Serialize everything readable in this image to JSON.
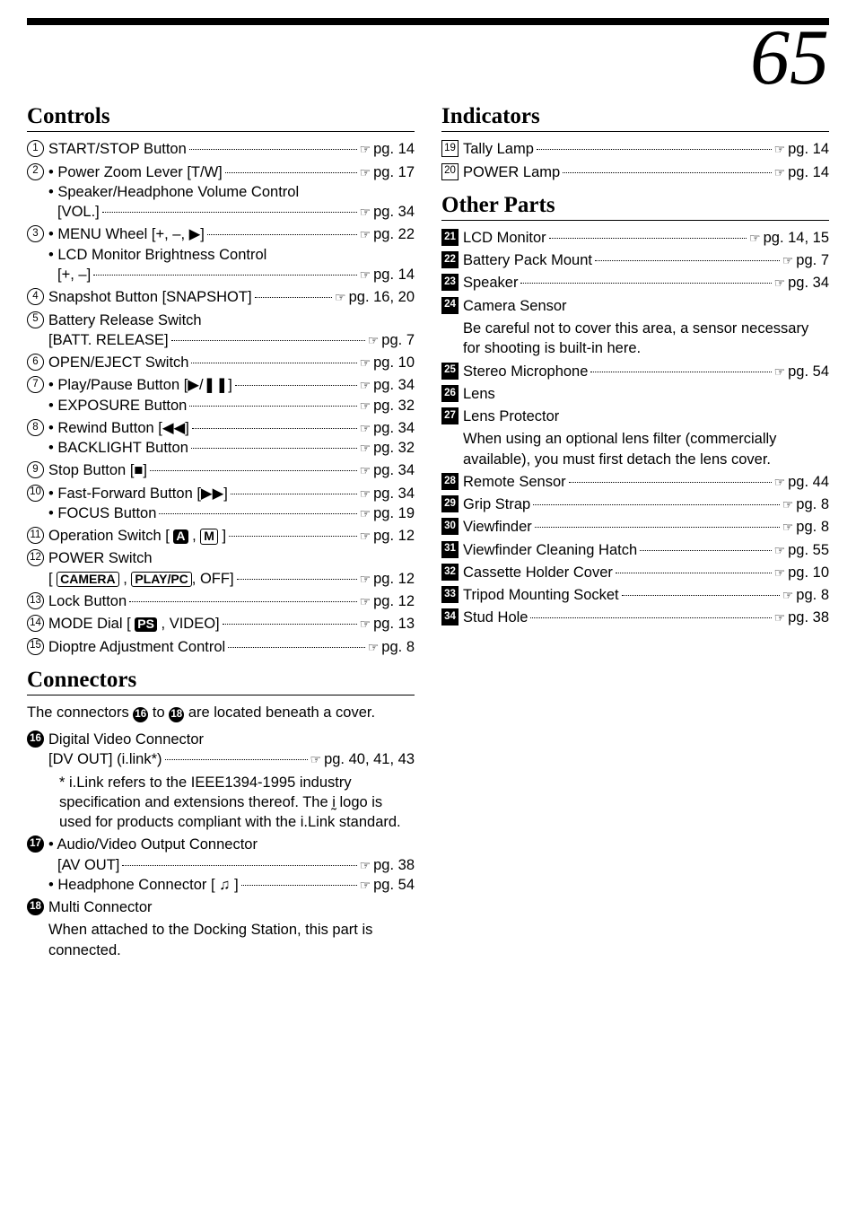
{
  "page_number": "65",
  "left_sections": [
    {
      "title": "Controls",
      "entries": [
        {
          "num": "1",
          "style": "c",
          "lines": [
            {
              "label": "START/STOP Button",
              "pg": "pg. 14"
            }
          ]
        },
        {
          "num": "2",
          "style": "c",
          "lines": [
            {
              "label": "• Power Zoom Lever [T/W]",
              "pg": "pg. 17"
            },
            {
              "label": "• Speaker/Headphone Volume Control"
            },
            {
              "label_indent": "[VOL.]",
              "pg": "pg. 34"
            }
          ]
        },
        {
          "num": "3",
          "style": "c",
          "lines": [
            {
              "label": "• MENU Wheel [+, –, ▶]",
              "pg": "pg. 22"
            },
            {
              "label": "• LCD Monitor Brightness Control"
            },
            {
              "label_indent": "[+, –]",
              "pg": "pg. 14"
            }
          ]
        },
        {
          "num": "4",
          "style": "c",
          "lines": [
            {
              "label": "Snapshot Button [SNAPSHOT]",
              "pg": "pg. 16, 20"
            }
          ]
        },
        {
          "num": "5",
          "style": "c",
          "lines": [
            {
              "label": "Battery Release Switch"
            },
            {
              "label_indent_none": "[BATT. RELEASE]",
              "pg": "pg. 7"
            }
          ]
        },
        {
          "num": "6",
          "style": "c",
          "lines": [
            {
              "label": "OPEN/EJECT Switch",
              "pg": "pg. 10"
            }
          ]
        },
        {
          "num": "7",
          "style": "c",
          "lines": [
            {
              "label": "• Play/Pause Button [▶/❚❚]",
              "pg": "pg. 34"
            },
            {
              "label": "• EXPOSURE Button",
              "pg": "pg. 32"
            }
          ]
        },
        {
          "num": "8",
          "style": "c",
          "lines": [
            {
              "label": "• Rewind Button [◀◀]",
              "pg": "pg. 34"
            },
            {
              "label": "• BACKLIGHT Button",
              "pg": "pg. 32"
            }
          ]
        },
        {
          "num": "9",
          "style": "c",
          "lines": [
            {
              "label": "Stop Button [■]",
              "pg": "pg. 34"
            }
          ]
        },
        {
          "num": "10",
          "style": "c",
          "lines": [
            {
              "label": "• Fast-Forward Button [▶▶]",
              "pg": "pg. 34"
            },
            {
              "label": "• FOCUS Button",
              "pg": "pg. 19"
            }
          ]
        },
        {
          "num": "11",
          "style": "c",
          "lines": [
            {
              "label_html": "Operation Switch [ <span class='solid'>A</span> , <span class='boxed'>M</span> ]",
              "pg": "pg. 12"
            }
          ]
        },
        {
          "num": "12",
          "style": "c",
          "lines": [
            {
              "label": "POWER Switch"
            },
            {
              "label_html_indent_none": "[ <span class='boxed'>CAMERA</span> , <span class='boxed'>PLAY/PC</span>, OFF]",
              "pg": "pg. 12"
            }
          ]
        },
        {
          "num": "13",
          "style": "c",
          "lines": [
            {
              "label": "Lock Button",
              "pg": "pg. 12"
            }
          ]
        },
        {
          "num": "14",
          "style": "c",
          "lines": [
            {
              "label_html": "MODE Dial [ <span class='solid'>PS</span> , VIDEO]",
              "pg": "pg. 13"
            }
          ]
        },
        {
          "num": "15",
          "style": "c",
          "lines": [
            {
              "label": "Dioptre Adjustment Control",
              "pg": "pg. 8"
            }
          ]
        }
      ]
    },
    {
      "title": "Connectors",
      "intro_html": "The connectors <span class='badge cs' style='position:static;display:inline-flex;width:17px;height:17px;'>16</span> to <span class='badge cs' style='position:static;display:inline-flex;width:17px;height:17px;'>18</span> are located beneath a cover.",
      "entries": [
        {
          "num": "16",
          "style": "cs",
          "lines": [
            {
              "label": "Digital Video Connector"
            },
            {
              "label_indent_none": "[DV OUT] (i.link*)",
              "pg": "pg. 40, 41, 43"
            }
          ],
          "note_html": "* i.Link refers to the IEEE1394-1995 industry specification and extensions thereof. The <span class='glyph'>ḭ</span> logo is used for products compliant with the i.Link standard."
        },
        {
          "num": "17",
          "style": "cs",
          "lines": [
            {
              "label": "• Audio/Video Output Connector"
            },
            {
              "label_indent": "[AV OUT]",
              "pg": "pg. 38"
            },
            {
              "label": "• Headphone Connector [ ♫ ]",
              "pg": "pg. 54"
            }
          ]
        },
        {
          "num": "18",
          "style": "cs",
          "lines": [
            {
              "label": "Multi Connector"
            }
          ],
          "cont": "When attached to the Docking Station, this part is connected."
        }
      ]
    }
  ],
  "right_sections": [
    {
      "title": "Indicators",
      "entries": [
        {
          "num": "19",
          "style": "sq",
          "lines": [
            {
              "label": "Tally Lamp",
              "pg": "pg. 14"
            }
          ]
        },
        {
          "num": "20",
          "style": "sq",
          "lines": [
            {
              "label": "POWER Lamp",
              "pg": "pg. 14"
            }
          ]
        }
      ]
    },
    {
      "title": "Other Parts",
      "entries": [
        {
          "num": "21",
          "style": "sqs",
          "lines": [
            {
              "label": "LCD Monitor",
              "pg": "pg. 14, 15"
            }
          ]
        },
        {
          "num": "22",
          "style": "sqs",
          "lines": [
            {
              "label": "Battery Pack Mount",
              "pg": "pg. 7"
            }
          ]
        },
        {
          "num": "23",
          "style": "sqs",
          "lines": [
            {
              "label": "Speaker",
              "pg": "pg. 34"
            }
          ]
        },
        {
          "num": "24",
          "style": "sqs",
          "lines": [
            {
              "label": "Camera Sensor"
            }
          ],
          "cont": "Be careful not to cover this area, a sensor necessary for shooting is built-in here."
        },
        {
          "num": "25",
          "style": "sqs",
          "lines": [
            {
              "label": "Stereo Microphone",
              "pg": "pg. 54"
            }
          ]
        },
        {
          "num": "26",
          "style": "sqs",
          "lines": [
            {
              "label": "Lens"
            }
          ]
        },
        {
          "num": "27",
          "style": "sqs",
          "lines": [
            {
              "label": "Lens Protector"
            }
          ],
          "cont": "When using an optional lens filter (commercially available), you must first detach the lens cover."
        },
        {
          "num": "28",
          "style": "sqs",
          "lines": [
            {
              "label": "Remote Sensor",
              "pg": "pg. 44"
            }
          ]
        },
        {
          "num": "29",
          "style": "sqs",
          "lines": [
            {
              "label": "Grip Strap",
              "pg": "pg. 8"
            }
          ]
        },
        {
          "num": "30",
          "style": "sqs",
          "lines": [
            {
              "label": "Viewfinder",
              "pg": "pg. 8"
            }
          ]
        },
        {
          "num": "31",
          "style": "sqs",
          "lines": [
            {
              "label": "Viewfinder Cleaning Hatch",
              "pg": "pg. 55"
            }
          ]
        },
        {
          "num": "32",
          "style": "sqs",
          "lines": [
            {
              "label": "Cassette Holder Cover",
              "pg": "pg. 10"
            }
          ]
        },
        {
          "num": "33",
          "style": "sqs",
          "lines": [
            {
              "label": "Tripod Mounting Socket",
              "pg": "pg. 8"
            }
          ]
        },
        {
          "num": "34",
          "style": "sqs",
          "lines": [
            {
              "label": "Stud Hole",
              "pg": "pg. 38"
            }
          ]
        }
      ]
    }
  ]
}
